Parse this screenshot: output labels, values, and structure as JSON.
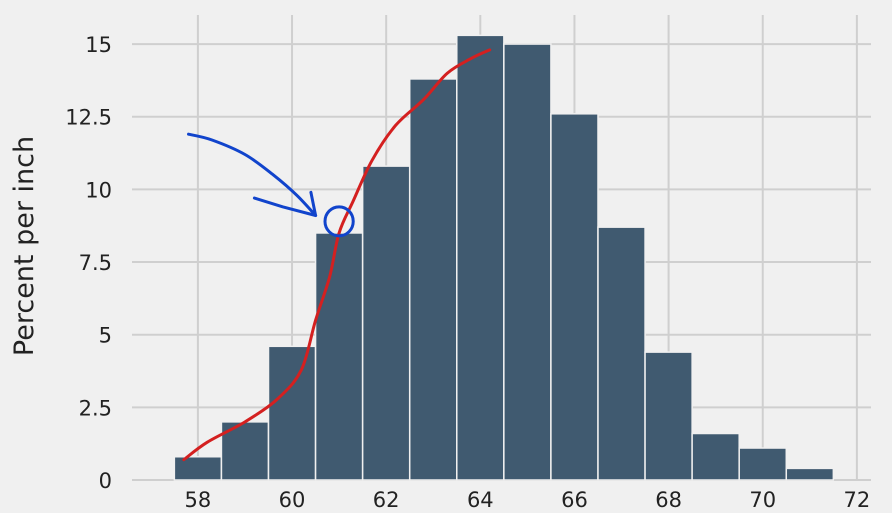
{
  "chart_data": {
    "type": "bar",
    "title": "",
    "xlabel": "",
    "ylabel": "Percent per inch",
    "xlim": [
      57.5,
      72.1
    ],
    "ylim": [
      0,
      16
    ],
    "grid": true,
    "x_ticks": [
      58,
      60,
      62,
      64,
      66,
      68,
      70,
      72
    ],
    "y_ticks": [
      0,
      2.5,
      5,
      7.5,
      10,
      12.5,
      15
    ],
    "y_tick_labels": [
      "0",
      "2.5",
      "5",
      "7.5",
      "10",
      "12.5",
      "15"
    ],
    "bar_color": "#405a70",
    "bins": [
      {
        "start": 57.5,
        "end": 58.5,
        "value": 0.8
      },
      {
        "start": 58.5,
        "end": 59.5,
        "value": 2.0
      },
      {
        "start": 59.5,
        "end": 60.5,
        "value": 4.6
      },
      {
        "start": 60.5,
        "end": 61.5,
        "value": 8.5
      },
      {
        "start": 61.5,
        "end": 62.5,
        "value": 10.8
      },
      {
        "start": 62.5,
        "end": 63.5,
        "value": 13.8
      },
      {
        "start": 63.5,
        "end": 64.5,
        "value": 15.3
      },
      {
        "start": 64.5,
        "end": 65.5,
        "value": 15.0
      },
      {
        "start": 65.5,
        "end": 66.5,
        "value": 12.6
      },
      {
        "start": 66.5,
        "end": 67.5,
        "value": 8.7
      },
      {
        "start": 67.5,
        "end": 68.5,
        "value": 4.4
      },
      {
        "start": 68.5,
        "end": 69.5,
        "value": 1.6
      },
      {
        "start": 69.5,
        "end": 70.5,
        "value": 1.1
      },
      {
        "start": 70.5,
        "end": 71.5,
        "value": 0.4
      }
    ],
    "annotations": [
      {
        "kind": "freehand-curve",
        "color": "#d42020",
        "points": [
          [
            57.7,
            0.7
          ],
          [
            58.2,
            1.3
          ],
          [
            59.0,
            2.0
          ],
          [
            59.7,
            2.8
          ],
          [
            60.2,
            3.8
          ],
          [
            60.5,
            5.5
          ],
          [
            60.8,
            7.0
          ],
          [
            61.0,
            8.5
          ],
          [
            61.3,
            9.6
          ],
          [
            61.7,
            11.0
          ],
          [
            62.2,
            12.2
          ],
          [
            62.8,
            13.1
          ],
          [
            63.3,
            14.0
          ],
          [
            63.8,
            14.5
          ],
          [
            64.2,
            14.8
          ]
        ]
      },
      {
        "kind": "freehand-arrow",
        "color": "#1144cc",
        "points": [
          [
            57.8,
            11.9
          ],
          [
            58.3,
            11.7
          ],
          [
            59.0,
            11.2
          ],
          [
            59.6,
            10.5
          ],
          [
            60.1,
            9.8
          ],
          [
            60.5,
            9.1
          ]
        ]
      },
      {
        "kind": "freehand-arrowhead",
        "color": "#1144cc",
        "points": [
          [
            59.2,
            9.7
          ],
          [
            59.8,
            9.4
          ],
          [
            60.5,
            9.1
          ],
          [
            60.4,
            9.9
          ]
        ]
      },
      {
        "kind": "freehand-circle",
        "color": "#1144cc",
        "center": [
          61.0,
          8.9
        ],
        "radius_x": 0.3,
        "radius_y": 0.5
      }
    ]
  }
}
